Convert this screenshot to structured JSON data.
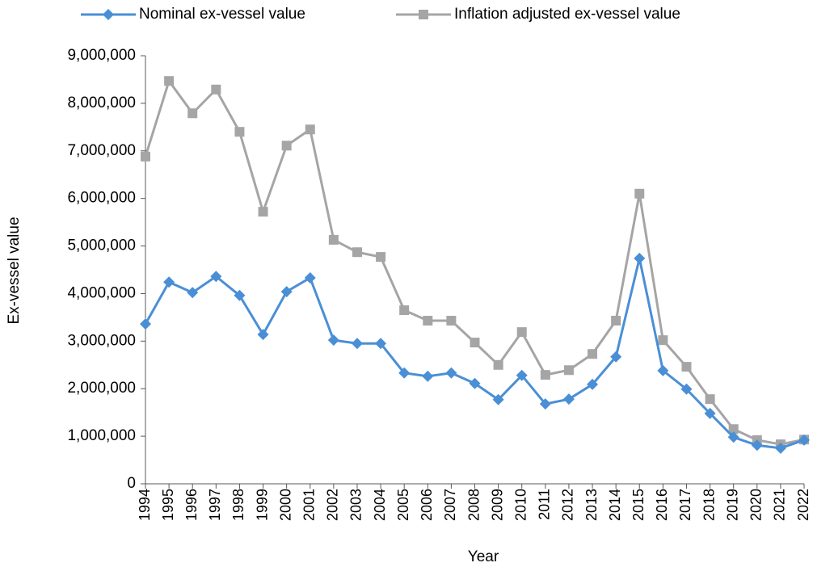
{
  "chart_data": {
    "type": "line",
    "x_label": "Year",
    "y_label": "Ex-vessel value",
    "categories": [
      "1994",
      "1995",
      "1996",
      "1997",
      "1998",
      "1999",
      "2000",
      "2001",
      "2002",
      "2003",
      "2004",
      "2005",
      "2006",
      "2007",
      "2008",
      "2009",
      "2010",
      "2011",
      "2012",
      "2013",
      "2014",
      "2015",
      "2016",
      "2017",
      "2018",
      "2019",
      "2020",
      "2021",
      "2022"
    ],
    "series": [
      {
        "name": "Nominal ex-vessel value",
        "color": "#4a8fd6",
        "marker": "diamond",
        "values": [
          3360000,
          4240000,
          4020000,
          4360000,
          3960000,
          3140000,
          4040000,
          4330000,
          3020000,
          2950000,
          2950000,
          2330000,
          2260000,
          2330000,
          2110000,
          1770000,
          2280000,
          1680000,
          1780000,
          2090000,
          2670000,
          4740000,
          2380000,
          1990000,
          1480000,
          980000,
          810000,
          750000,
          920000
        ]
      },
      {
        "name": "Inflation adjusted ex-vessel value",
        "color": "#a5a5a5",
        "marker": "square",
        "values": [
          6880000,
          8470000,
          7790000,
          8290000,
          7400000,
          5720000,
          7110000,
          7450000,
          5130000,
          4870000,
          4770000,
          3650000,
          3430000,
          3430000,
          2970000,
          2500000,
          3190000,
          2290000,
          2390000,
          2730000,
          3430000,
          6100000,
          3020000,
          2460000,
          1780000,
          1150000,
          920000,
          830000,
          930000
        ]
      }
    ],
    "ylim": [
      0,
      9000000
    ],
    "yticks": [
      0,
      {
        "value": 1000000,
        "label": "1,000,000"
      },
      {
        "value": 2000000,
        "label": "2,000,000"
      },
      {
        "value": 3000000,
        "label": "3,000,000"
      },
      {
        "value": 4000000,
        "label": "4,000,000"
      },
      {
        "value": 5000000,
        "label": "5,000,000"
      },
      {
        "value": 6000000,
        "label": "6,000,000"
      },
      {
        "value": 7000000,
        "label": "7,000,000"
      },
      {
        "value": 8000000,
        "label": "8,000,000"
      },
      {
        "value": 9000000,
        "label": "9,000,000"
      }
    ],
    "grid": false,
    "legend": "top"
  }
}
